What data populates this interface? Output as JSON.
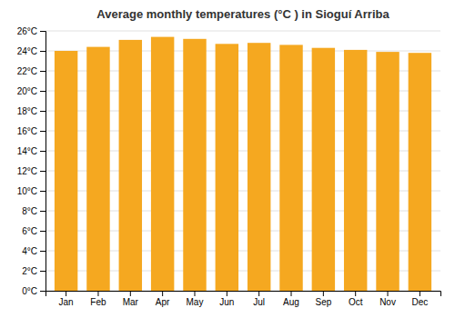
{
  "chart_data": {
    "type": "bar",
    "title": "Average monthly temperatures (°C ) in Sioguí Arriba",
    "categories": [
      "Jan",
      "Feb",
      "Mar",
      "Apr",
      "May",
      "Jun",
      "Jul",
      "Aug",
      "Sep",
      "Oct",
      "Nov",
      "Dec"
    ],
    "values": [
      24.0,
      24.4,
      25.1,
      25.4,
      25.2,
      24.7,
      24.8,
      24.6,
      24.3,
      24.1,
      23.9,
      23.8
    ],
    "color": "#F5A820",
    "ylim": [
      0,
      26
    ],
    "yticks": [
      {
        "value": 0,
        "label": "0°C"
      },
      {
        "value": 2,
        "label": "2°C"
      },
      {
        "value": 4,
        "label": "4°C"
      },
      {
        "value": 6,
        "label": "6°C"
      },
      {
        "value": 8,
        "label": "8°C"
      },
      {
        "value": 10,
        "label": "10°C"
      },
      {
        "value": 12,
        "label": "12°C"
      },
      {
        "value": 14,
        "label": "14°C"
      },
      {
        "value": 16,
        "label": "16°C"
      },
      {
        "value": 18,
        "label": "18°C"
      },
      {
        "value": 20,
        "label": "20°C"
      },
      {
        "value": 22,
        "label": "22°C"
      },
      {
        "value": 24,
        "label": "24°C"
      },
      {
        "value": 26,
        "label": "26°C"
      }
    ],
    "grid": true
  }
}
